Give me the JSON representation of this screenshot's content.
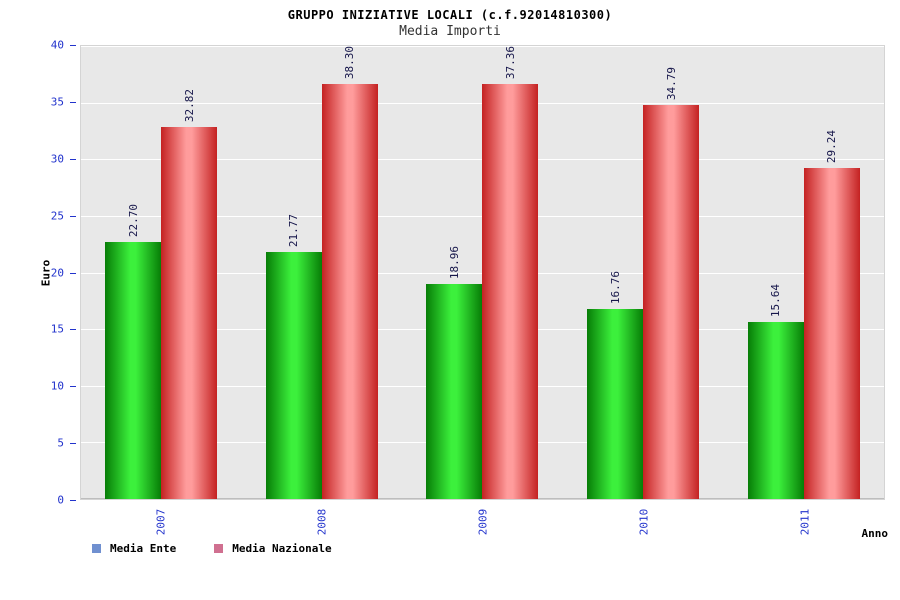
{
  "title": "GRUPPO INIZIATIVE LOCALI (c.f.92014810300)",
  "subtitle": "Media Importi",
  "chart_data": {
    "type": "bar",
    "title": "GRUPPO INIZIATIVE LOCALI (c.f.92014810300)",
    "subtitle": "Media Importi",
    "xlabel": "Anno",
    "ylabel": "Euro",
    "ylim": [
      0,
      40
    ],
    "yticks": [
      0,
      5,
      10,
      15,
      20,
      25,
      30,
      35,
      40
    ],
    "grid": "horizontal-white-on-gray",
    "legend_position": "bottom-left",
    "categories": [
      "2007",
      "2008",
      "2009",
      "2010",
      "2011"
    ],
    "series": [
      {
        "name": "Media Ente",
        "values": [
          22.7,
          21.77,
          18.96,
          16.76,
          15.64
        ],
        "labels": [
          "22.70",
          "21.77",
          "18.96",
          "16.76",
          "15.64"
        ],
        "edge_color": "#077d07",
        "center_color": "#3cf03c"
      },
      {
        "name": "Media Nazionale",
        "values": [
          32.82,
          38.3,
          37.36,
          34.79,
          29.24
        ],
        "labels": [
          "32.82",
          "38.30",
          "37.36",
          "34.79",
          "29.24"
        ],
        "edge_color": "#c42222",
        "center_color": "#ff9c9c"
      }
    ],
    "legend": [
      {
        "label": "Media Ente",
        "swatch": "#7090d0"
      },
      {
        "label": "Media Nazionale",
        "swatch": "#d07090"
      }
    ],
    "colors": {
      "plot_background": "#e8e8e8",
      "gridline": "#ffffff",
      "tick_label": "#2233cc",
      "value_label": "#16164a"
    }
  }
}
